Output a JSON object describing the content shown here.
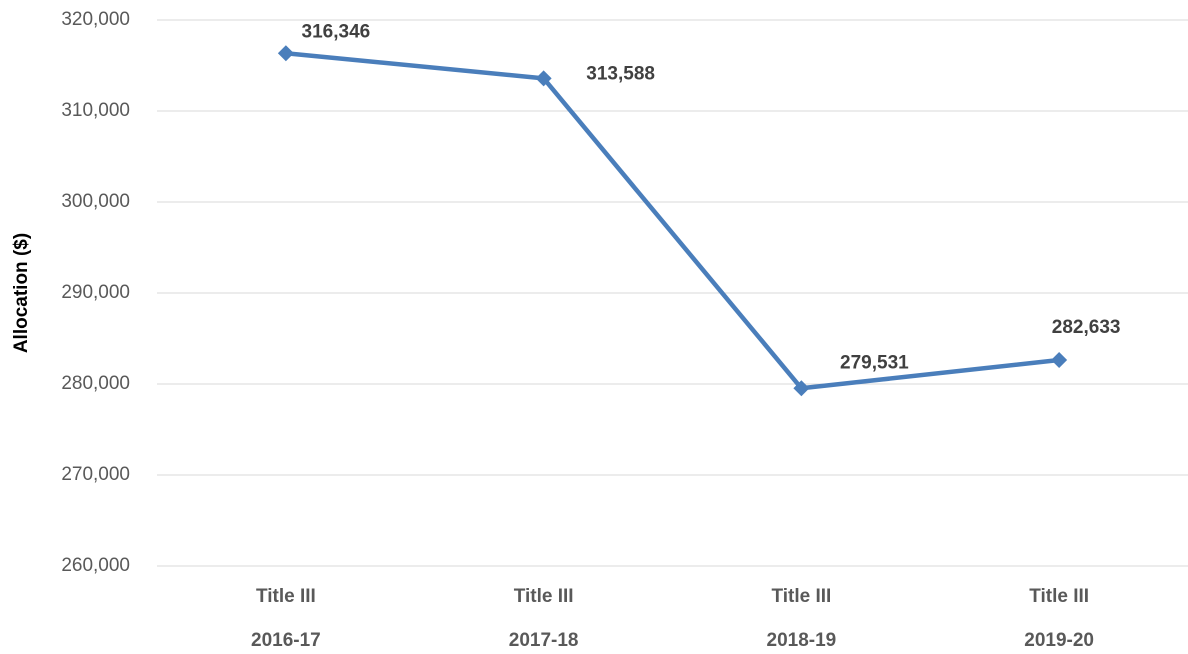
{
  "chart_data": {
    "type": "line",
    "y_label": "Allocation ($)",
    "categories": [
      [
        "Title III",
        "2016-17"
      ],
      [
        "Title III",
        "2017-18"
      ],
      [
        "Title III",
        "2018-19"
      ],
      [
        "Title III",
        "2019-20"
      ]
    ],
    "series": [
      {
        "name": "Allocation",
        "color": "#4a7ebb",
        "values": [
          316346,
          313588,
          279531,
          282633
        ],
        "value_labels": [
          "316,346",
          "313,588",
          "279,531",
          "282,633"
        ]
      }
    ],
    "ylim": [
      260000,
      320000
    ],
    "yticks": [
      {
        "value": 260000,
        "label": "260,000"
      },
      {
        "value": 270000,
        "label": "270,000"
      },
      {
        "value": 280000,
        "label": "280,000"
      },
      {
        "value": 290000,
        "label": "290,000"
      },
      {
        "value": 300000,
        "label": "300,000"
      },
      {
        "value": 310000,
        "label": "310,000"
      },
      {
        "value": 320000,
        "label": "320,000"
      }
    ],
    "grid": true
  }
}
